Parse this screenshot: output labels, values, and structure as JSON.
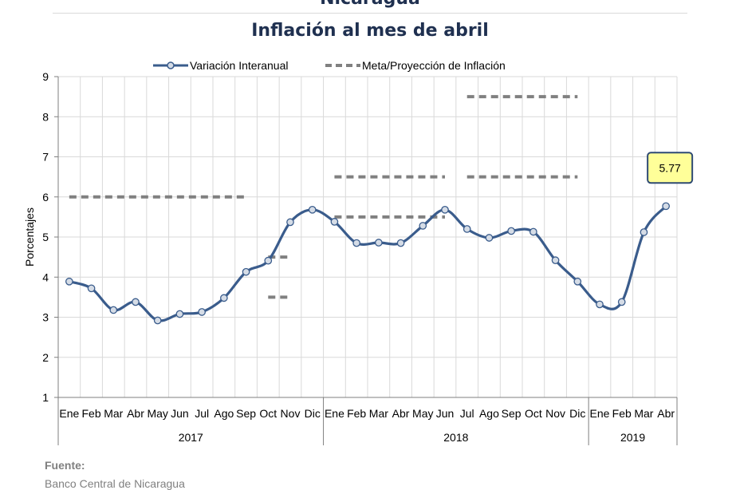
{
  "title": "Nicaragua",
  "subtitle": "Inflación al mes de abril",
  "legend": {
    "series1": "Variación Interanual",
    "series2": "Meta/Proyección de Inflación"
  },
  "source": {
    "label": "Fuente:",
    "text": "Banco Central de Nicaragua"
  },
  "colors": {
    "line": "#3A5C8C",
    "marker_fill": "#D5DCE6",
    "dashes": "#808080",
    "callout_fill": "#FFFF99",
    "callout_border": "#2E4A73"
  },
  "chart_data": {
    "type": "line",
    "ylabel": "Porcentajes",
    "ylim": [
      1,
      9
    ],
    "yticks": [
      1,
      2,
      3,
      4,
      5,
      6,
      7,
      8,
      9
    ],
    "grid": true,
    "legend_position": "top",
    "months": [
      "Ene",
      "Feb",
      "Mar",
      "Abr",
      "May",
      "Jun",
      "Jul",
      "Ago",
      "Sep",
      "Oct",
      "Nov",
      "Dic",
      "Ene",
      "Feb",
      "Mar",
      "Abr",
      "May",
      "Jun",
      "Jul",
      "Ago",
      "Sep",
      "Oct",
      "Nov",
      "Dic",
      "Ene",
      "Feb",
      "Mar",
      "Abr"
    ],
    "years": [
      {
        "label": "2017",
        "count": 12
      },
      {
        "label": "2018",
        "count": 12
      },
      {
        "label": "2019",
        "count": 4
      }
    ],
    "series": [
      {
        "name": "Variación Interanual",
        "values": [
          3.89,
          3.72,
          3.18,
          3.38,
          2.92,
          3.08,
          3.13,
          3.48,
          4.13,
          4.41,
          5.37,
          5.68,
          5.38,
          4.85,
          4.86,
          4.85,
          5.28,
          5.68,
          5.2,
          4.98,
          5.15,
          5.13,
          4.42,
          3.89,
          3.32,
          3.38,
          5.12,
          5.77
        ]
      }
    ],
    "target_segments": [
      {
        "start": 0,
        "end": 8,
        "value": 6.0
      },
      {
        "start": 9,
        "end": 10,
        "value": 4.5
      },
      {
        "start": 9,
        "end": 10,
        "value": 3.5
      },
      {
        "start": 12,
        "end": 17,
        "value": 6.5
      },
      {
        "start": 12,
        "end": 17,
        "value": 5.5
      },
      {
        "start": 18,
        "end": 23,
        "value": 8.5
      },
      {
        "start": 18,
        "end": 23,
        "value": 6.5
      }
    ],
    "annotation": {
      "index": 27,
      "text": "5.77"
    }
  }
}
